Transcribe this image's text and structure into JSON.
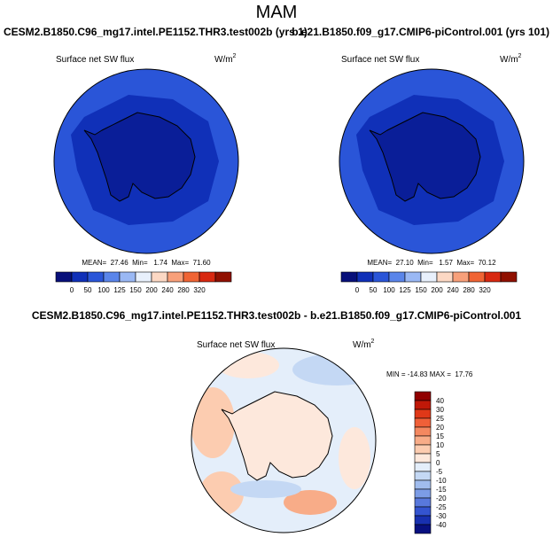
{
  "title": "MAM",
  "panels": [
    {
      "case": "CESM2.B1850.C96_mg17.intel.PE1152.THR3.test002b (yrs 1)",
      "variable": "Surface net SW flux",
      "units": "W/m",
      "units_exp": "2",
      "stats": "MEAN=  27.46  Min=   1.74  Max=  71.60"
    },
    {
      "case": "b.e21.B1850.f09_g17.CMIP6-piControl.001 (yrs 101)",
      "variable": "Surface net SW flux",
      "units": "W/m",
      "units_exp": "2",
      "stats": "MEAN=  27.10  Min=   1.57  Max=  70.12"
    }
  ],
  "colorbar": {
    "labels": [
      "0",
      "50",
      "100",
      "125",
      "150",
      "200",
      "240",
      "280",
      "320"
    ],
    "colors": [
      "#08107a",
      "#1030b8",
      "#2a55d8",
      "#5a85ea",
      "#9ab8f4",
      "#e8f0fc",
      "#fcd8c4",
      "#f8a07a",
      "#f06434",
      "#d82810",
      "#901000"
    ]
  },
  "difference": {
    "title": "CESM2.B1850.C96_mg17.intel.PE1152.THR3.test002b - b.e21.B1850.f09_g17.CMIP6-piControl.001",
    "variable": "Surface net SW flux",
    "units": "W/m",
    "units_exp": "2",
    "stats": "MIN = -14.83 MAX =  17.76",
    "colorbar": {
      "labels": [
        "40",
        "30",
        "25",
        "20",
        "15",
        "10",
        "5",
        "0",
        "-5",
        "-10",
        "-15",
        "-20",
        "-25",
        "-30",
        "-40"
      ],
      "colors": [
        "#900000",
        "#c01808",
        "#e03818",
        "#f06038",
        "#f48860",
        "#f8ac88",
        "#fcccb0",
        "#fde8dc",
        "#e4eefa",
        "#c4d8f4",
        "#a0bcee",
        "#7c9ce6",
        "#5878dc",
        "#3454d0",
        "#1830b0",
        "#081080"
      ]
    }
  }
}
